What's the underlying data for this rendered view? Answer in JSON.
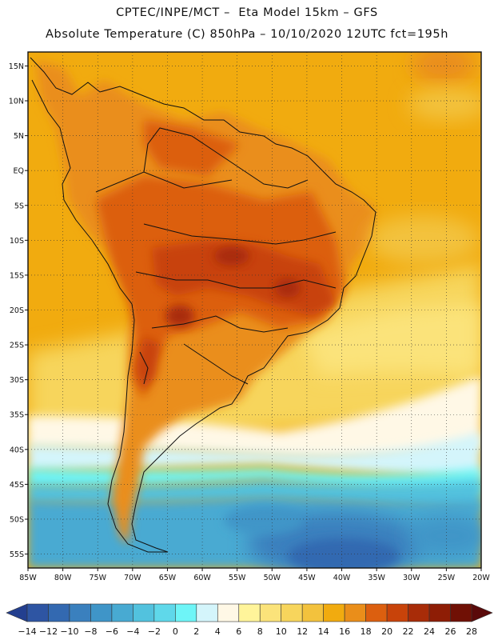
{
  "title_line1": "CPTEC/INPE/MCT –  Eta Model 15km – GFS",
  "title_line2": "Absolute Temperature (C) 850hPa – 10/10/2020 12UTC fct=195h",
  "lat_labels": [
    "15N",
    "10N",
    "5N",
    "EQ",
    "5S",
    "10S",
    "15S",
    "20S",
    "25S",
    "30S",
    "35S",
    "40S",
    "45S",
    "50S",
    "55S"
  ],
  "lon_labels": [
    "85W",
    "80W",
    "75W",
    "70W",
    "65W",
    "60W",
    "55W",
    "50W",
    "45W",
    "40W",
    "35W",
    "30W",
    "25W",
    "20W"
  ],
  "colorbar": {
    "tick_labels": [
      "-14",
      "-12",
      "-10",
      "-8",
      "-6",
      "-4",
      "-2",
      "0",
      "2",
      "4",
      "6",
      "8",
      "10",
      "12",
      "14",
      "16",
      "18",
      "20",
      "22",
      "24",
      "26",
      "28"
    ],
    "colors": [
      "#233f8f",
      "#2e55a3",
      "#3369b1",
      "#3a80be",
      "#3f95c8",
      "#48aad2",
      "#52c2de",
      "#5fd8ea",
      "#6ef5f7",
      "#d4f5fb",
      "#fff8e6",
      "#fff49a",
      "#fbe37a",
      "#f7d55c",
      "#f3c23d",
      "#f1ab0f",
      "#ea8e1a",
      "#dc5f0f",
      "#c8430a",
      "#a82c08",
      "#8e1d05",
      "#701005",
      "#5a0a0a"
    ]
  },
  "chart_data": {
    "type": "heatmap",
    "variable": "Absolute Temperature (C) 850hPa",
    "model": "Eta Model 15km – GFS",
    "run": "10/10/2020 12UTC",
    "forecast_hour": "195h",
    "lon_range": [
      -85,
      -20
    ],
    "lat_range": [
      -57,
      17
    ],
    "grid": true,
    "colorbar_range": [
      -14,
      28
    ],
    "colorbar_step": 2
  }
}
